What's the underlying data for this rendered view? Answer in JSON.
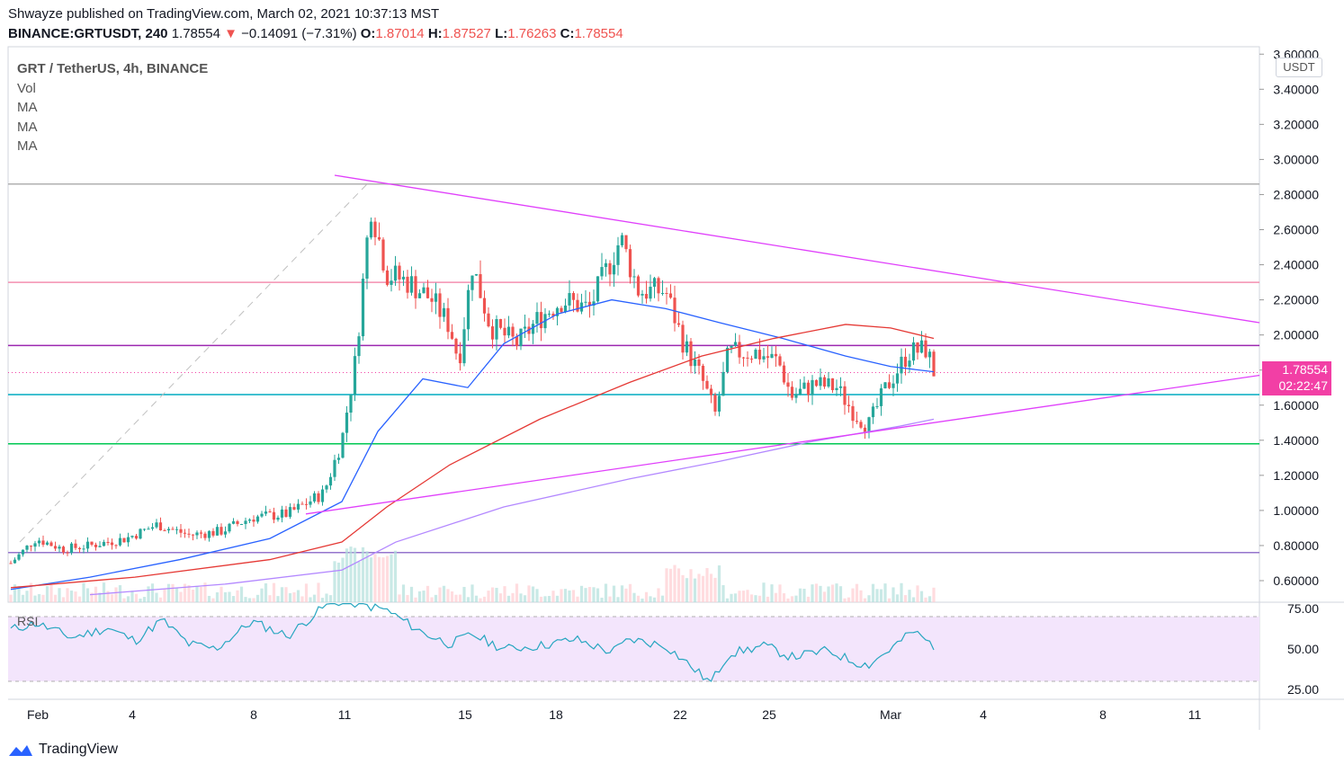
{
  "header": {
    "publisher_line": "Shwayze published on TradingView.com, March 02, 2021 10:37:13 MST",
    "symbol": "BINANCE:GRTUSDT, 240",
    "last": "1.78554",
    "arrow": "▼",
    "change": "−0.14091 (−7.31%)",
    "open_label": "O:",
    "open": "1.87014",
    "high_label": "H:",
    "high": "1.87527",
    "low_label": "L:",
    "low": "1.76263",
    "close_label": "C:",
    "close": "1.78554"
  },
  "legend": {
    "title": "GRT / TetherUS, 4h, BINANCE",
    "vol": "Vol",
    "ma1": "MA",
    "ma2": "MA",
    "ma3": "MA"
  },
  "rsi_label": "RSI",
  "price_tag": {
    "price": "1.78554",
    "countdown": "02:22:47"
  },
  "currency": "USDT",
  "brand": "TradingView",
  "colors": {
    "up": "#26a69a",
    "down": "#ef5350",
    "ma_blue": "#2962ff",
    "ma_red": "#e53935",
    "ma_purple": "#b388ff",
    "trend_pink": "#e040fb",
    "rsi_line": "#26a6c0",
    "rsi_band": "#f3e5fc"
  },
  "chart_data": [
    {
      "type": "candlestick",
      "title": "GRT / TetherUS, 4h, BINANCE",
      "ylim": [
        0.5,
        3.6
      ],
      "y_ticks": [
        "3.60000",
        "3.40000",
        "3.20000",
        "3.00000",
        "2.80000",
        "2.60000",
        "2.40000",
        "2.20000",
        "2.00000",
        "1.80000",
        "1.60000",
        "1.40000",
        "1.20000",
        "1.00000",
        "0.80000",
        "0.60000"
      ],
      "x_ticks": [
        "Feb",
        "4",
        "8",
        "11",
        "15",
        "18",
        "22",
        "25",
        "Mar",
        "4",
        "8",
        "11"
      ],
      "last_close": 1.78554,
      "horizontal_levels": [
        {
          "price": 2.86,
          "color": "#b0b0b0"
        },
        {
          "price": 2.3,
          "color": "#f48fb1"
        },
        {
          "price": 1.94,
          "color": "#9c27b0"
        },
        {
          "price": 1.66,
          "color": "#00acc1"
        },
        {
          "price": 1.38,
          "color": "#00c853"
        },
        {
          "price": 0.76,
          "color": "#9575cd"
        }
      ],
      "series": [
        {
          "name": "Price",
          "kind": "candles"
        },
        {
          "name": "Vol",
          "kind": "volume"
        },
        {
          "name": "MA",
          "kind": "line"
        },
        {
          "name": "MA",
          "kind": "line"
        },
        {
          "name": "MA",
          "kind": "line"
        }
      ]
    },
    {
      "type": "line",
      "title": "RSI",
      "ylim": [
        20,
        80
      ],
      "y_ticks": [
        "75.00",
        "50.00",
        "25.00"
      ],
      "bands": [
        30,
        70
      ]
    }
  ]
}
